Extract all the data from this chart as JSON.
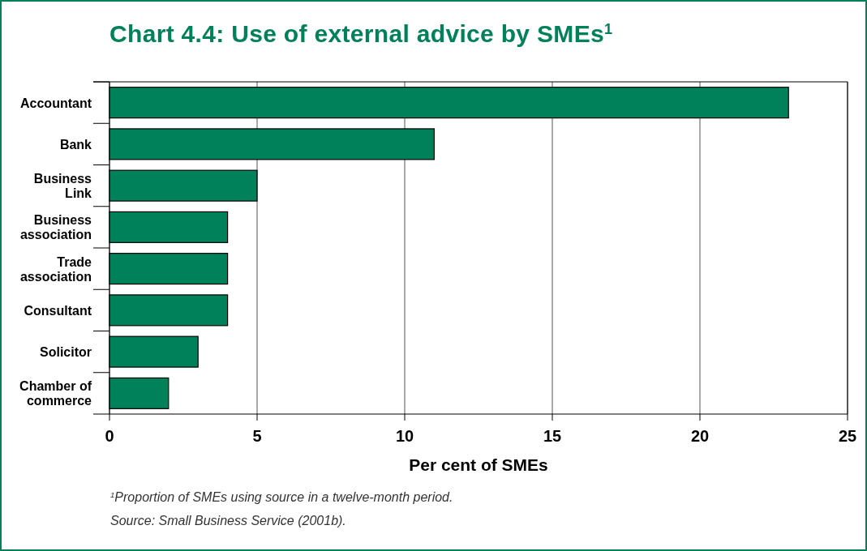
{
  "chart_data": {
    "type": "bar",
    "orientation": "horizontal",
    "title": "Chart 4.4: Use of external advice by SMEs$^{1}$",
    "categories": [
      "Accountant",
      "Bank",
      "Business Link",
      "Business association",
      "Trade association",
      "Consultant",
      "Solicitor",
      "Chamber of commerce"
    ],
    "values": [
      23,
      11,
      5,
      4,
      4,
      4,
      3,
      2
    ],
    "color": "#00815a",
    "xlim": [
      0,
      25
    ],
    "xticks": [
      0,
      5,
      10,
      15,
      20,
      25
    ],
    "xlabel": "Per cent of SMEs",
    "grid": "x",
    "annotations": [
      "$^{1}$Proportion of SMEs using source in a twelve-month period.",
      "Source: Small Business Service (2001b)."
    ]
  }
}
